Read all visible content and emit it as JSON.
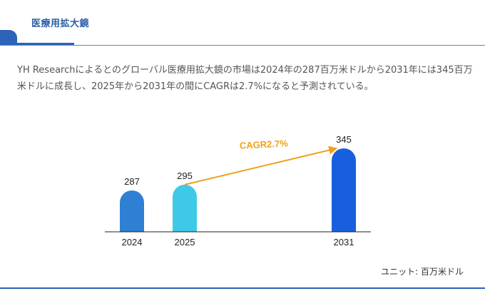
{
  "header": {
    "title": "医療用拡大鏡"
  },
  "description": "YH Researchによるとのグローバル医療用拡大鏡の市場は2024年の287百万米ドルから2031年には345百万米ドルに成長し、2025年から2031年の間にCAGRは2.7%になると予測されている。",
  "unit_label": "ユニット: 百万米ドル",
  "colors": {
    "accent": "#2b64b8",
    "bar_2024": "#2f7fd4",
    "bar_2025": "#3ec9e6",
    "bar_2031": "#175fdc",
    "cagr_arrow": "#f0a01a"
  },
  "chart_data": {
    "type": "bar",
    "categories": [
      "2024",
      "2025",
      "2031"
    ],
    "values": [
      287,
      295,
      345
    ],
    "annotation": "CAGR2.7%",
    "xlabel": "",
    "ylabel": "",
    "grid": false
  }
}
